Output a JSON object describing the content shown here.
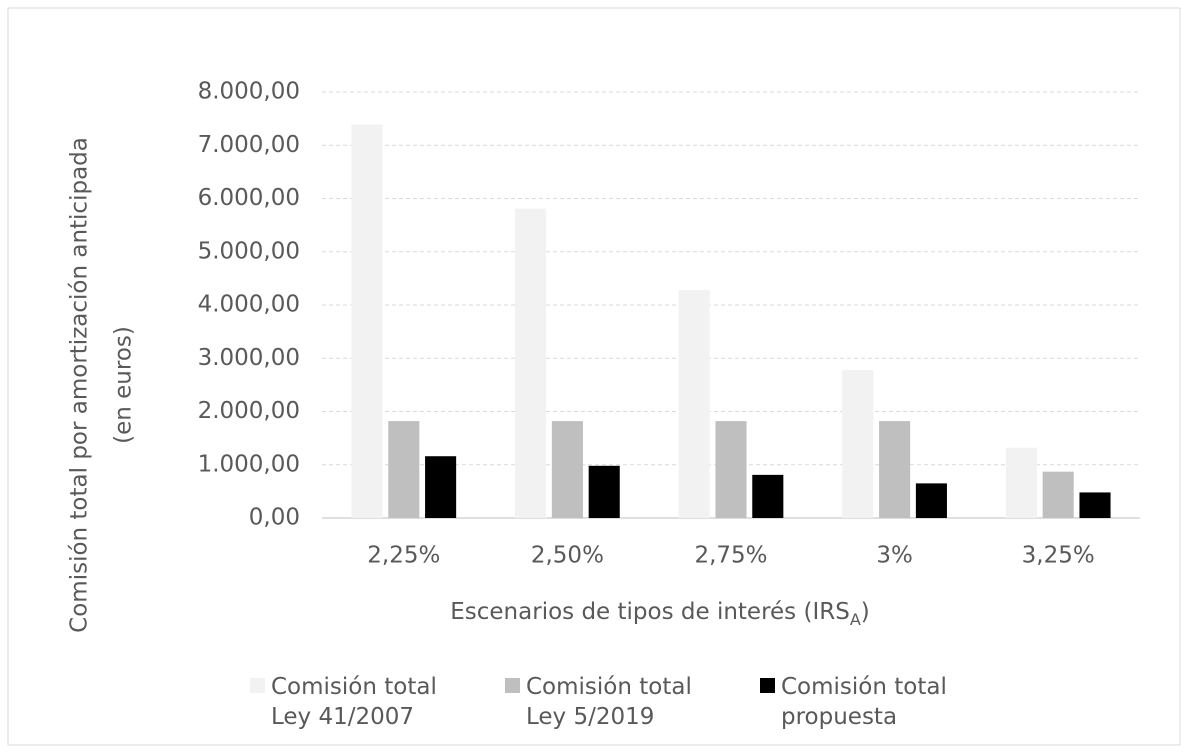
{
  "chart_data": {
    "type": "bar",
    "y_label": [
      "Comisión total por amortización anticipada",
      "(en euros)"
    ],
    "x_label_parts": [
      "Escenarios de tipos de interés (IRS",
      "A",
      ")"
    ],
    "categories": [
      "2,25%",
      "2,50%",
      "2,75%",
      "3%",
      "3,25%"
    ],
    "series": [
      {
        "name": "Comisión total Ley 41/2007",
        "color": "#f2f2f2",
        "values": [
          7390,
          5810,
          4280,
          2780,
          1320
        ]
      },
      {
        "name": "Comisión total Ley 5/2019",
        "color": "#bfbfbf",
        "values": [
          1820,
          1820,
          1820,
          1820,
          870
        ]
      },
      {
        "name": "Comisión total propuesta",
        "color": "#000000",
        "values": [
          1160,
          980,
          810,
          650,
          480
        ]
      }
    ],
    "ylim": [
      0,
      8000
    ],
    "yticks": [
      {
        "value": 0,
        "label": "0,00"
      },
      {
        "value": 1000,
        "label": "1.000,00"
      },
      {
        "value": 2000,
        "label": "2.000,00"
      },
      {
        "value": 3000,
        "label": "3.000,00"
      },
      {
        "value": 4000,
        "label": "4.000,00"
      },
      {
        "value": 5000,
        "label": "5.000,00"
      },
      {
        "value": 6000,
        "label": "6.000,00"
      },
      {
        "value": 7000,
        "label": "7.000,00"
      },
      {
        "value": 8000,
        "label": "8.000,00"
      }
    ],
    "grid": true,
    "legend": "bottom"
  }
}
